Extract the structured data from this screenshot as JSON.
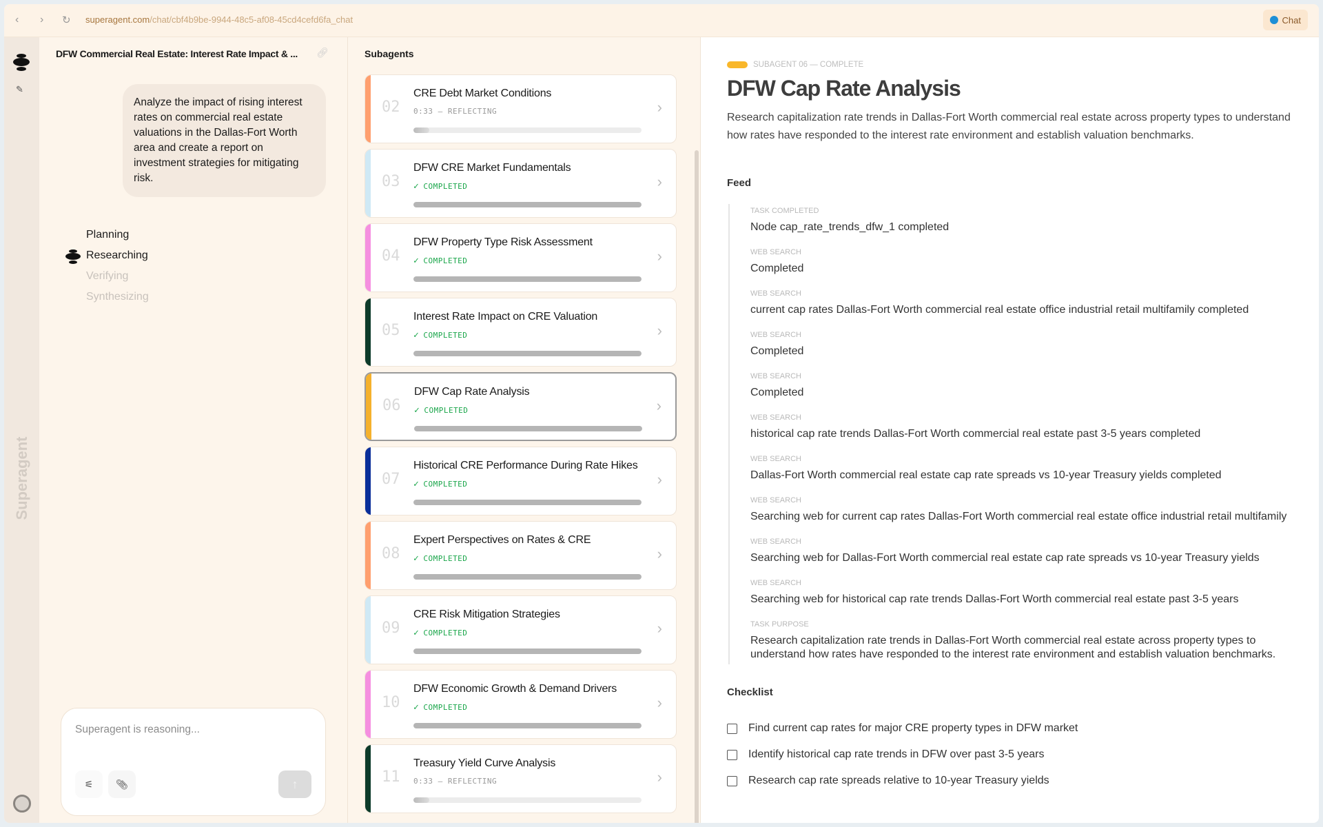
{
  "browser": {
    "url_host": "superagent.com",
    "url_path": "/chat/cbf4b9be-9944-48c5-af08-45cd4cefd6fa_chat",
    "chat_label": "Chat"
  },
  "brand": "Superagent",
  "chat": {
    "title": "DFW Commercial Real Estate: Interest Rate Impact & ...",
    "prompt": "Analyze the impact of rising interest rates on commercial real estate valuations in the Dallas-Fort Worth area and create a report on investment strategies for mitigating risk.",
    "steps": [
      {
        "label": "Planning",
        "state": "done"
      },
      {
        "label": "Researching",
        "state": "active"
      },
      {
        "label": "Verifying",
        "state": "pending"
      },
      {
        "label": "Synthesizing",
        "state": "pending"
      }
    ],
    "input_placeholder": "Superagent is reasoning..."
  },
  "subagents": {
    "heading": "Subagents",
    "items": [
      {
        "num": "02",
        "title": "CRE Debt Market Conditions",
        "status": "0:33 — REFLECTING",
        "done": false,
        "progress": 0.07,
        "accent": "#ff9f6e"
      },
      {
        "num": "03",
        "title": "DFW CRE Market Fundamentals",
        "status": "COMPLETED",
        "done": true,
        "progress": 1,
        "accent": "#cfe9f5"
      },
      {
        "num": "04",
        "title": "DFW Property Type Risk Assessment",
        "status": "COMPLETED",
        "done": true,
        "progress": 1,
        "accent": "#f58fe0"
      },
      {
        "num": "05",
        "title": "Interest Rate Impact on CRE Valuation",
        "status": "COMPLETED",
        "done": true,
        "progress": 1,
        "accent": "#0d3b2a"
      },
      {
        "num": "06",
        "title": "DFW Cap Rate Analysis",
        "status": "COMPLETED",
        "done": true,
        "progress": 1,
        "accent": "#f5b12c",
        "selected": true
      },
      {
        "num": "07",
        "title": "Historical CRE Performance During Rate Hikes",
        "status": "COMPLETED",
        "done": true,
        "progress": 1,
        "accent": "#0a2f9a"
      },
      {
        "num": "08",
        "title": "Expert Perspectives on Rates & CRE",
        "status": "COMPLETED",
        "done": true,
        "progress": 1,
        "accent": "#ff9f6e"
      },
      {
        "num": "09",
        "title": "CRE Risk Mitigation Strategies",
        "status": "COMPLETED",
        "done": true,
        "progress": 1,
        "accent": "#cfe9f5"
      },
      {
        "num": "10",
        "title": "DFW Economic Growth & Demand Drivers",
        "status": "COMPLETED",
        "done": true,
        "progress": 1,
        "accent": "#f58fe0"
      },
      {
        "num": "11",
        "title": "Treasury Yield Curve Analysis",
        "status": "0:33 — REFLECTING",
        "done": false,
        "progress": 0.07,
        "accent": "#0d3b2a"
      }
    ]
  },
  "detail": {
    "tag": "SUBAGENT 06 — COMPLETE",
    "title": "DFW Cap Rate Analysis",
    "description": "Research capitalization rate trends in Dallas-Fort Worth commercial real estate across property types to understand how rates have responded to the interest rate environment and establish valuation benchmarks.",
    "feed_heading": "Feed",
    "feed": [
      {
        "label": "TASK COMPLETED",
        "text": "Node cap_rate_trends_dfw_1 completed"
      },
      {
        "label": "WEB SEARCH",
        "text": "Completed"
      },
      {
        "label": "WEB SEARCH",
        "text": "current cap rates Dallas-Fort Worth commercial real estate office industrial retail multifamily completed"
      },
      {
        "label": "WEB SEARCH",
        "text": "Completed"
      },
      {
        "label": "WEB SEARCH",
        "text": "Completed"
      },
      {
        "label": "WEB SEARCH",
        "text": "historical cap rate trends Dallas-Fort Worth commercial real estate past 3-5 years completed"
      },
      {
        "label": "WEB SEARCH",
        "text": "Dallas-Fort Worth commercial real estate cap rate spreads vs 10-year Treasury yields completed"
      },
      {
        "label": "WEB SEARCH",
        "text": "Searching web for current cap rates Dallas-Fort Worth commercial real estate office industrial retail multifamily"
      },
      {
        "label": "WEB SEARCH",
        "text": "Searching web for Dallas-Fort Worth commercial real estate cap rate spreads vs 10-year Treasury yields"
      },
      {
        "label": "WEB SEARCH",
        "text": "Searching web for historical cap rate trends Dallas-Fort Worth commercial real estate past 3-5 years"
      },
      {
        "label": "TASK PURPOSE",
        "text": "Research capitalization rate trends in Dallas-Fort Worth commercial real estate across property types to understand how rates have responded to the interest rate environment and establish valuation benchmarks."
      }
    ],
    "checklist_heading": "Checklist",
    "checklist": [
      {
        "label": "Find current cap rates for major CRE property types in DFW market",
        "checked": false
      },
      {
        "label": "Identify historical cap rate trends in DFW over past 3-5 years",
        "checked": false
      },
      {
        "label": "Research cap rate spreads relative to 10-year Treasury yields",
        "checked": false
      }
    ]
  }
}
